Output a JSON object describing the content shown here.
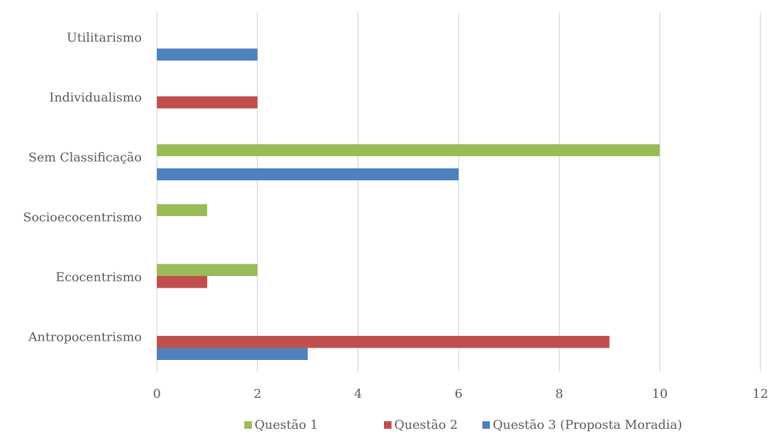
{
  "chart_data": {
    "type": "bar",
    "orientation": "horizontal",
    "categories": [
      "Antropocentrismo",
      "Ecocentrismo",
      "Socioecocentrismo",
      "Sem Classificação",
      "Individualismo",
      "Utilitarismo"
    ],
    "series": [
      {
        "name": "Questão 1",
        "color": "#9bbb59",
        "values": [
          0,
          2,
          1,
          10,
          0,
          0
        ]
      },
      {
        "name": "Questão 2",
        "color": "#c0504d",
        "values": [
          9,
          1,
          0,
          0,
          2,
          0
        ]
      },
      {
        "name": "Questão 3 (Proposta Moradia)",
        "color": "#4f81bd",
        "values": [
          3,
          0,
          0,
          6,
          0,
          2
        ]
      }
    ],
    "xlim": [
      0,
      12
    ],
    "xticks": [
      "0",
      "2",
      "4",
      "6",
      "8",
      "10",
      "12"
    ],
    "grid": true,
    "legend_position": "bottom"
  }
}
